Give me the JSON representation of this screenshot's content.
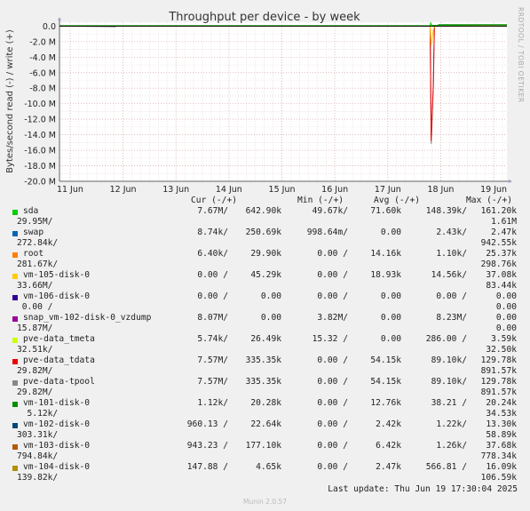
{
  "chart_data": {
    "type": "line",
    "title": "Throughput per device - by week",
    "ylabel": "Bytes/second read (-) / write (+)",
    "yticks": [
      {
        "v": 0,
        "label": "0.0"
      },
      {
        "v": -2,
        "label": "-2.0 M"
      },
      {
        "v": -4,
        "label": "-4.0 M"
      },
      {
        "v": -6,
        "label": "-6.0 M"
      },
      {
        "v": -8,
        "label": "-8.0 M"
      },
      {
        "v": -10,
        "label": "-10.0 M"
      },
      {
        "v": -12,
        "label": "-12.0 M"
      },
      {
        "v": -14,
        "label": "-14.0 M"
      },
      {
        "v": -16,
        "label": "-16.0 M"
      },
      {
        "v": -18,
        "label": "-18.0 M"
      },
      {
        "v": -20,
        "label": "-20.0 M"
      }
    ],
    "ylim": [
      -20,
      0.5
    ],
    "xticks": [
      {
        "d": 0,
        "label": "11 Jun"
      },
      {
        "d": 1,
        "label": "12 Jun"
      },
      {
        "d": 2,
        "label": "13 Jun"
      },
      {
        "d": 3,
        "label": "14 Jun"
      },
      {
        "d": 4,
        "label": "15 Jun"
      },
      {
        "d": 5,
        "label": "16 Jun"
      },
      {
        "d": 6,
        "label": "17 Jun"
      },
      {
        "d": 7,
        "label": "18 Jun"
      },
      {
        "d": 8,
        "label": "19 Jun"
      }
    ],
    "xlim": [
      -0.2,
      8.25
    ],
    "grid": true,
    "series": [
      {
        "name": "pve-data_tpool",
        "color": "#888888",
        "points": [
          [
            -0.2,
            0
          ],
          [
            0.85,
            -0.1
          ],
          [
            0.87,
            0
          ],
          [
            6.8,
            0
          ],
          [
            6.82,
            -15.2
          ],
          [
            6.86,
            -8.0
          ],
          [
            6.88,
            0
          ],
          [
            8.25,
            0
          ]
        ]
      },
      {
        "name": "pve-data_tdata",
        "color": "#ee0000",
        "points": [
          [
            -0.2,
            0
          ],
          [
            6.8,
            0
          ],
          [
            6.82,
            -14.8
          ],
          [
            6.86,
            -7.5
          ],
          [
            6.88,
            0
          ],
          [
            8.25,
            0
          ]
        ]
      },
      {
        "name": "vm-105-disk-0",
        "color": "#ffcc00",
        "points": [
          [
            -0.2,
            0
          ],
          [
            6.8,
            0
          ],
          [
            6.82,
            -2.5
          ],
          [
            6.86,
            -0.5
          ],
          [
            6.88,
            0
          ],
          [
            8.25,
            0
          ]
        ]
      },
      {
        "name": "sda",
        "color": "#00cc00",
        "points": [
          [
            -0.2,
            0.05
          ],
          [
            6.8,
            0.05
          ],
          [
            6.81,
            0.4
          ],
          [
            6.83,
            0.1
          ],
          [
            7.8,
            0.15
          ],
          [
            8.25,
            0.15
          ]
        ]
      },
      {
        "name": "vm-101-disk-0",
        "color": "#008800",
        "points": [
          [
            -0.2,
            0.02
          ],
          [
            6.95,
            0.02
          ],
          [
            6.96,
            0.18
          ],
          [
            8.25,
            0.18
          ]
        ]
      }
    ]
  },
  "side_label": "RRDTOOL / TOBI OETIKER",
  "legend": {
    "headers": {
      "cur": "Cur (-/+)",
      "min": "Min (-/+)",
      "avg": "Avg (-/+)",
      "max": "Max (-/+)"
    },
    "rows": [
      {
        "name": "sda",
        "color": "#00cc00",
        "cur_r": "7.67M/",
        "cur_w": "642.90k",
        "min_r": "49.67k/",
        "min_w": "71.60k",
        "avg_r": "148.39k/",
        "avg_w": "161.20k",
        "max_r": "29.95M/",
        "max_w": "1.61M"
      },
      {
        "name": "swap",
        "color": "#0066b3",
        "cur_r": "8.74k/",
        "cur_w": "250.69k",
        "min_r": "998.64m/",
        "min_w": "0.00",
        "avg_r": "2.43k/",
        "avg_w": "2.47k",
        "max_r": "272.84k/",
        "max_w": "942.55k"
      },
      {
        "name": "root",
        "color": "#ff8000",
        "cur_r": "6.40k/",
        "cur_w": "29.90k",
        "min_r": "0.00 /",
        "min_w": "14.16k",
        "avg_r": "1.10k/",
        "avg_w": "25.37k",
        "max_r": "281.67k/",
        "max_w": "298.76k"
      },
      {
        "name": "vm-105-disk-0",
        "color": "#ffcc00",
        "cur_r": "0.00 /",
        "cur_w": "45.29k",
        "min_r": "0.00 /",
        "min_w": "18.93k",
        "avg_r": "14.56k/",
        "avg_w": "37.08k",
        "max_r": "33.66M/",
        "max_w": "83.44k"
      },
      {
        "name": "vm-106-disk-0",
        "color": "#330099",
        "cur_r": "0.00 /",
        "cur_w": "0.00",
        "min_r": "0.00 /",
        "min_w": "0.00",
        "avg_r": "0.00 /",
        "avg_w": "0.00",
        "max_r": " 0.00 /",
        "max_w": "0.00"
      },
      {
        "name": "snap_vm-102-disk-0_vzdump",
        "color": "#990099",
        "cur_r": "8.07M/",
        "cur_w": "0.00",
        "min_r": "3.82M/",
        "min_w": "0.00",
        "avg_r": "8.23M/",
        "avg_w": "0.00",
        "max_r": "15.87M/",
        "max_w": "0.00"
      },
      {
        "name": "pve-data_tmeta",
        "color": "#ccff00",
        "cur_r": "5.74k/",
        "cur_w": "26.49k",
        "min_r": "15.32 /",
        "min_w": "0.00",
        "avg_r": "286.00 /",
        "avg_w": "3.59k",
        "max_r": "32.51k/",
        "max_w": "32.50k"
      },
      {
        "name": "pve-data_tdata",
        "color": "#ee0000",
        "cur_r": "7.57M/",
        "cur_w": "335.35k",
        "min_r": "0.00 /",
        "min_w": "54.15k",
        "avg_r": "89.10k/",
        "avg_w": "129.78k",
        "max_r": "29.82M/",
        "max_w": "891.57k"
      },
      {
        "name": "pve-data-tpool",
        "color": "#888888",
        "cur_r": "7.57M/",
        "cur_w": "335.35k",
        "min_r": "0.00 /",
        "min_w": "54.15k",
        "avg_r": "89.10k/",
        "avg_w": "129.78k",
        "max_r": "29.82M/",
        "max_w": "891.57k"
      },
      {
        "name": "vm-101-disk-0",
        "color": "#008f00",
        "cur_r": "1.12k/",
        "cur_w": "20.28k",
        "min_r": "0.00 /",
        "min_w": "12.76k",
        "avg_r": "38.21 /",
        "avg_w": "20.24k",
        "max_r": "  5.12k/",
        "max_w": "34.53k"
      },
      {
        "name": "vm-102-disk-0",
        "color": "#00487d",
        "cur_r": "960.13 /",
        "cur_w": "22.64k",
        "min_r": "0.00 /",
        "min_w": "2.42k",
        "avg_r": "1.22k/",
        "avg_w": "13.30k",
        "max_r": "303.31k/",
        "max_w": "58.89k"
      },
      {
        "name": "vm-103-disk-0",
        "color": "#b35a00",
        "cur_r": "943.23 /",
        "cur_w": "177.10k",
        "min_r": "0.00 /",
        "min_w": "6.42k",
        "avg_r": "1.26k/",
        "avg_w": "37.68k",
        "max_r": "794.84k/",
        "max_w": "778.34k"
      },
      {
        "name": "vm-104-disk-0",
        "color": "#b38f00",
        "cur_r": "147.88 /",
        "cur_w": "4.65k",
        "min_r": "0.00 /",
        "min_w": "2.47k",
        "avg_r": "566.81 /",
        "avg_w": "16.09k",
        "max_r": "139.82k/",
        "max_w": "106.59k"
      }
    ]
  },
  "last_update": "Last update: Thu Jun 19 17:30:04 2025",
  "footer": "Munin 2.0.57"
}
